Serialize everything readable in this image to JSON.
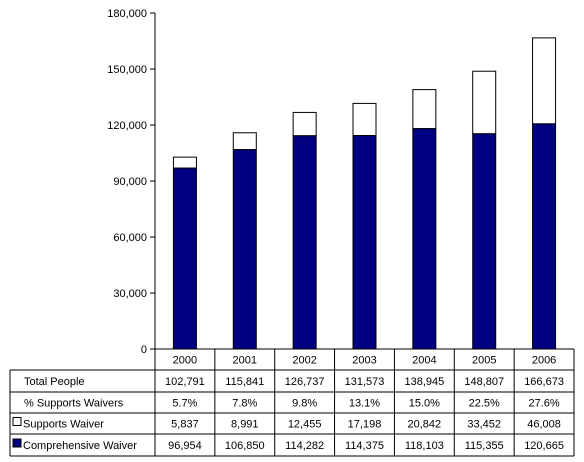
{
  "chart_data": {
    "type": "bar",
    "stacked": true,
    "title": "",
    "xlabel": "",
    "ylabel": "",
    "ylim": [
      0,
      180000
    ],
    "yticks": [
      "0",
      "30,000",
      "60,000",
      "90,000",
      "120,000",
      "150,000",
      "180,000"
    ],
    "grid": false,
    "categories": [
      "2000",
      "2001",
      "2002",
      "2003",
      "2004",
      "2005",
      "2006"
    ],
    "series": [
      {
        "name": "Comprehensive Waiver",
        "color": "#000080",
        "values": [
          96954,
          106850,
          114282,
          114375,
          118103,
          115355,
          120665
        ],
        "labels": [
          "96,954",
          "106,850",
          "114,282",
          "114,375",
          "118,103",
          "115,355",
          "120,665"
        ]
      },
      {
        "name": "Supports Waiver",
        "color": "#ffffff",
        "values": [
          5837,
          8991,
          12455,
          17198,
          20842,
          33452,
          46008
        ],
        "labels": [
          "5,837",
          "8,991",
          "12,455",
          "17,198",
          "20,842",
          "33,452",
          "46,008"
        ]
      }
    ],
    "table": {
      "rows": [
        {
          "label": "Total People",
          "key": null,
          "cells": [
            "102,791",
            "115,841",
            "126,737",
            "131,573",
            "138,945",
            "148,807",
            "166,673"
          ]
        },
        {
          "label": "% Supports Waivers",
          "key": null,
          "cells": [
            "5.7%",
            "7.8%",
            "9.8%",
            "13.1%",
            "15.0%",
            "22.5%",
            "27.6%"
          ]
        },
        {
          "label": "Supports Waiver",
          "key": "#ffffff",
          "cells": [
            "5,837",
            "8,991",
            "12,455",
            "17,198",
            "20,842",
            "33,452",
            "46,008"
          ]
        },
        {
          "label": "Comprehensive Waiver",
          "key": "#000080",
          "cells": [
            "96,954",
            "106,850",
            "114,282",
            "114,375",
            "118,103",
            "115,355",
            "120,665"
          ]
        }
      ]
    }
  }
}
